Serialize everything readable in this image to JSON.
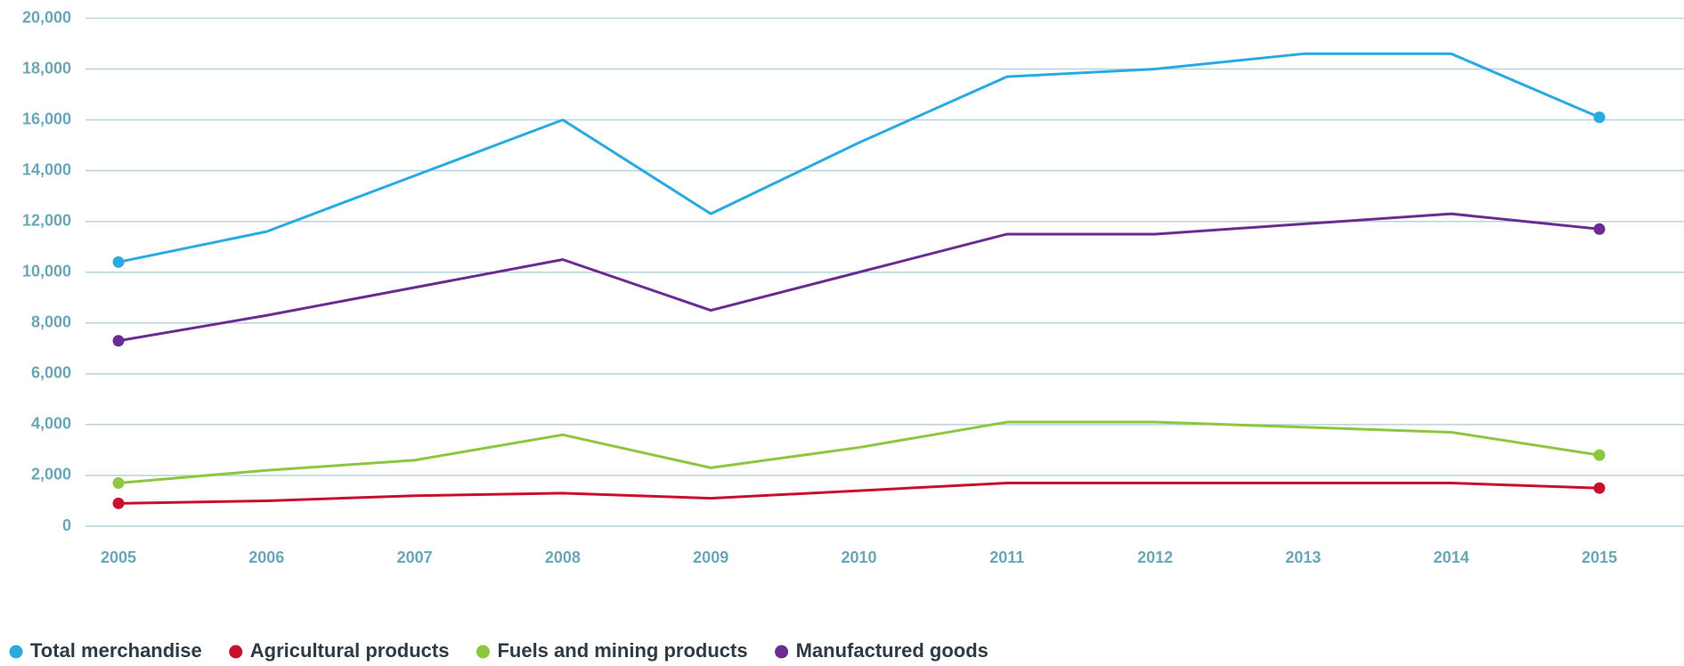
{
  "chart_data": {
    "type": "line",
    "categories": [
      "2005",
      "2006",
      "2007",
      "2008",
      "2009",
      "2010",
      "2011",
      "2012",
      "2013",
      "2014",
      "2015"
    ],
    "series": [
      {
        "name": "Total merchandise",
        "color": "#29abe2",
        "values": [
          10400,
          11600,
          13800,
          16000,
          12300,
          15100,
          17700,
          18000,
          18600,
          18600,
          16100
        ]
      },
      {
        "name": "Agricultural products",
        "color": "#c8102e",
        "values": [
          900,
          1000,
          1200,
          1300,
          1100,
          1400,
          1700,
          1700,
          1700,
          1700,
          1500
        ]
      },
      {
        "name": "Fuels and mining products",
        "color": "#8dc63f",
        "values": [
          1700,
          2200,
          2600,
          3600,
          2300,
          3100,
          4100,
          4100,
          3900,
          3700,
          2800
        ]
      },
      {
        "name": "Manufactured goods",
        "color": "#6a2c91",
        "values": [
          7300,
          8300,
          9400,
          10500,
          8500,
          10000,
          11500,
          11500,
          11900,
          12300,
          11700
        ]
      }
    ],
    "ylim": [
      0,
      20000
    ],
    "yticks": [
      0,
      {
        "value": 2000,
        "label": "2,000"
      },
      {
        "value": 4000,
        "label": "4,000"
      },
      {
        "value": 6000,
        "label": "6,000"
      },
      {
        "value": 8000,
        "label": "8,000"
      },
      {
        "value": 10000,
        "label": "10,000"
      },
      {
        "value": 12000,
        "label": "12,000"
      },
      {
        "value": 14000,
        "label": "14,000"
      },
      {
        "value": 16000,
        "label": "16,000"
      },
      {
        "value": 18000,
        "label": "18,000"
      },
      {
        "value": 20000,
        "label": "20,000"
      }
    ],
    "grid": true,
    "legend": "bottom"
  }
}
